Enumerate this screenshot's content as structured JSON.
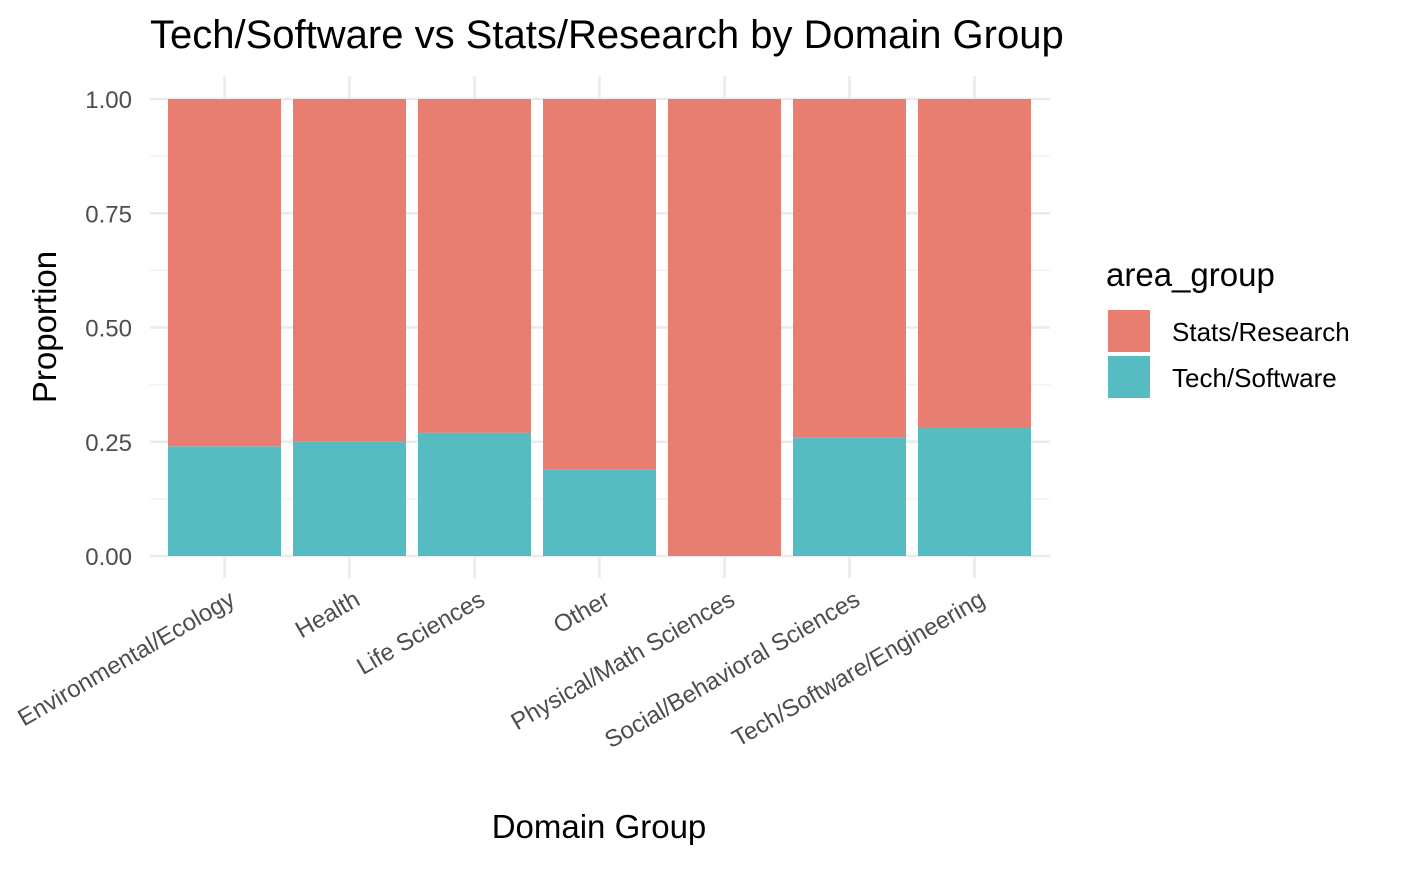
{
  "chart_data": {
    "type": "bar",
    "stacked": true,
    "title": "Tech/Software vs Stats/Research by Domain Group",
    "xlabel": "Domain Group",
    "ylabel": "Proportion",
    "ylim": [
      0,
      1
    ],
    "yticks": [
      "0.00",
      "0.25",
      "0.50",
      "0.75",
      "1.00"
    ],
    "categories": [
      "Environmental/Ecology",
      "Health",
      "Life Sciences",
      "Other",
      "Physical/Math Sciences",
      "Social/Behavioral Sciences",
      "Tech/Software/Engineering"
    ],
    "series": [
      {
        "name": "Tech/Software",
        "color": "#56BCC2",
        "values": [
          0.24,
          0.25,
          0.27,
          0.19,
          0.0,
          0.26,
          0.28
        ]
      },
      {
        "name": "Stats/Research",
        "color": "#E87D72",
        "values": [
          0.76,
          0.75,
          0.73,
          0.81,
          1.0,
          0.74,
          0.72
        ]
      }
    ],
    "legend": {
      "title": "area_group",
      "position": "right",
      "entries": [
        {
          "label": "Stats/Research",
          "color": "#E87D72"
        },
        {
          "label": "Tech/Software",
          "color": "#56BCC2"
        }
      ]
    },
    "grid": true
  }
}
